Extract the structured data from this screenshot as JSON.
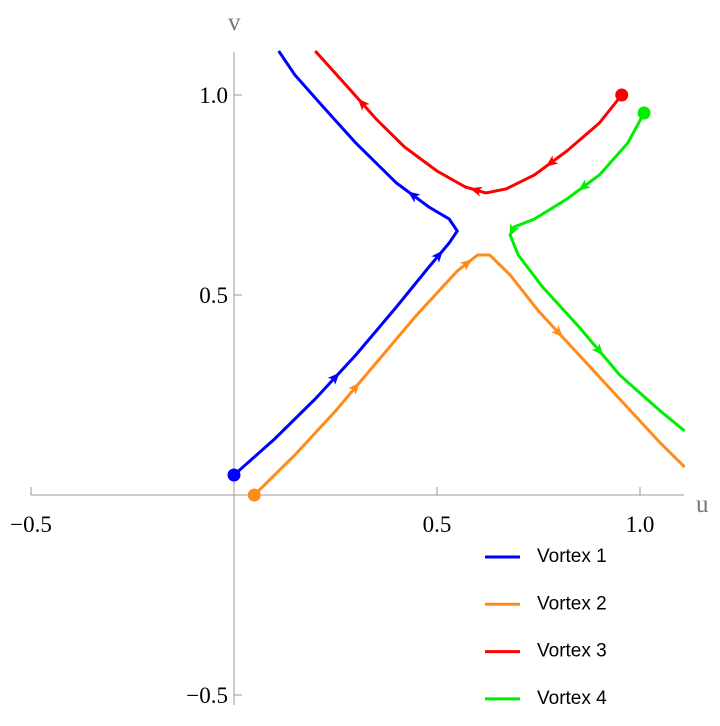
{
  "chart_data": {
    "type": "line",
    "x_label": "u",
    "y_label": "v",
    "xlim": [
      -0.5,
      1.1
    ],
    "ylim": [
      -0.5,
      1.1
    ],
    "xticks": [
      {
        "value": -0.5,
        "label": "−0.5"
      },
      0.5,
      {
        "value": 1.0,
        "label": "1.0"
      }
    ],
    "yticks": [
      {
        "value": -0.5,
        "label": "−0.5"
      },
      0.5,
      {
        "value": 1.0,
        "label": "1.0"
      }
    ],
    "legend": "lower right",
    "series": [
      {
        "name": "Vortex 1",
        "color": "#0000ff",
        "x": [
          0,
          0.1,
          0.2,
          0.3,
          0.4,
          0.48,
          0.53,
          0.55,
          0.53,
          0.48,
          0.4,
          0.3,
          0.22,
          0.15,
          0.11
        ],
        "values": [
          0.05,
          0.14,
          0.24,
          0.35,
          0.47,
          0.57,
          0.63,
          0.66,
          0.69,
          0.72,
          0.78,
          0.88,
          0.97,
          1.05,
          1.11
        ]
      },
      {
        "name": "Vortex 2",
        "color": "#ff8c1a",
        "x": [
          0.05,
          0.15,
          0.25,
          0.35,
          0.45,
          0.55,
          0.6,
          0.63,
          0.68,
          0.75,
          0.85,
          0.95,
          1.05,
          1.11
        ],
        "values": [
          0,
          0.1,
          0.21,
          0.33,
          0.45,
          0.56,
          0.6,
          0.6,
          0.55,
          0.46,
          0.35,
          0.24,
          0.13,
          0.07
        ]
      },
      {
        "name": "Vortex 3",
        "color": "#ff0000",
        "x": [
          0.955,
          0.9,
          0.82,
          0.74,
          0.67,
          0.62,
          0.57,
          0.5,
          0.42,
          0.35,
          0.28,
          0.2
        ],
        "values": [
          1.0,
          0.93,
          0.86,
          0.8,
          0.765,
          0.755,
          0.77,
          0.81,
          0.87,
          0.94,
          1.02,
          1.11
        ]
      },
      {
        "name": "Vortex 4",
        "color": "#00ee00",
        "x": [
          1.01,
          0.97,
          0.9,
          0.82,
          0.74,
          0.69,
          0.68,
          0.7,
          0.76,
          0.85,
          0.95,
          1.05,
          1.11
        ],
        "values": [
          0.955,
          0.88,
          0.8,
          0.74,
          0.69,
          0.67,
          0.65,
          0.6,
          0.52,
          0.42,
          0.3,
          0.21,
          0.16
        ]
      }
    ]
  }
}
